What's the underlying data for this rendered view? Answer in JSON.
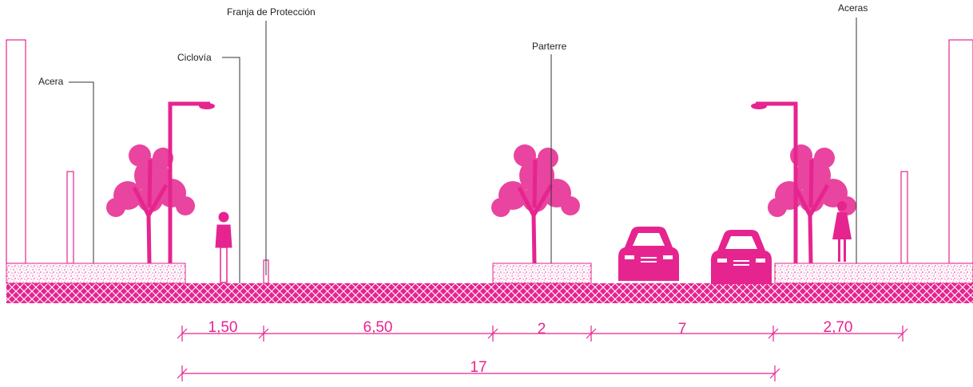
{
  "annotations": [
    {
      "text": "Franja de Protección"
    },
    {
      "text": "Ciclovía"
    },
    {
      "text": "Acera"
    },
    {
      "text": "Parterre"
    },
    {
      "text": "Aceras"
    }
  ],
  "dimensions": [
    {
      "label": "1,50"
    },
    {
      "label": "6,50"
    },
    {
      "label": "2"
    },
    {
      "label": "7"
    },
    {
      "label": "2,70"
    }
  ],
  "total": {
    "label": "17"
  }
}
